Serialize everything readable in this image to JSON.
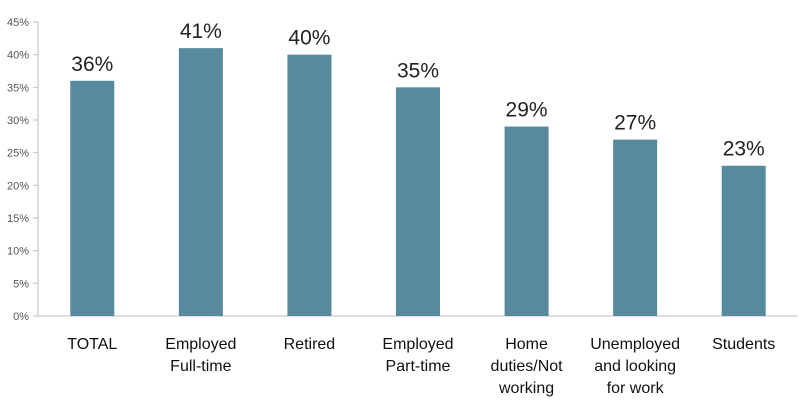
{
  "chart_data": {
    "type": "bar",
    "categories": [
      [
        "TOTAL"
      ],
      [
        "Employed",
        "Full-time"
      ],
      [
        "Retired"
      ],
      [
        "Employed",
        "Part-time"
      ],
      [
        "Home",
        "duties/Not",
        "working"
      ],
      [
        "Unemployed",
        "and looking",
        "for work"
      ],
      [
        "Students"
      ]
    ],
    "values": [
      36,
      41,
      40,
      35,
      29,
      27,
      23
    ],
    "data_labels": [
      "36%",
      "41%",
      "40%",
      "35%",
      "29%",
      "27%",
      "23%"
    ],
    "y_tick_labels": [
      "0%",
      "5%",
      "10%",
      "15%",
      "20%",
      "25%",
      "30%",
      "35%",
      "40%",
      "45%"
    ],
    "ylim": [
      0,
      45
    ],
    "y_unit": "%",
    "grid": false,
    "legend": "none",
    "bar_color": "#578a9d",
    "axis_color": "#bfbfbf"
  }
}
